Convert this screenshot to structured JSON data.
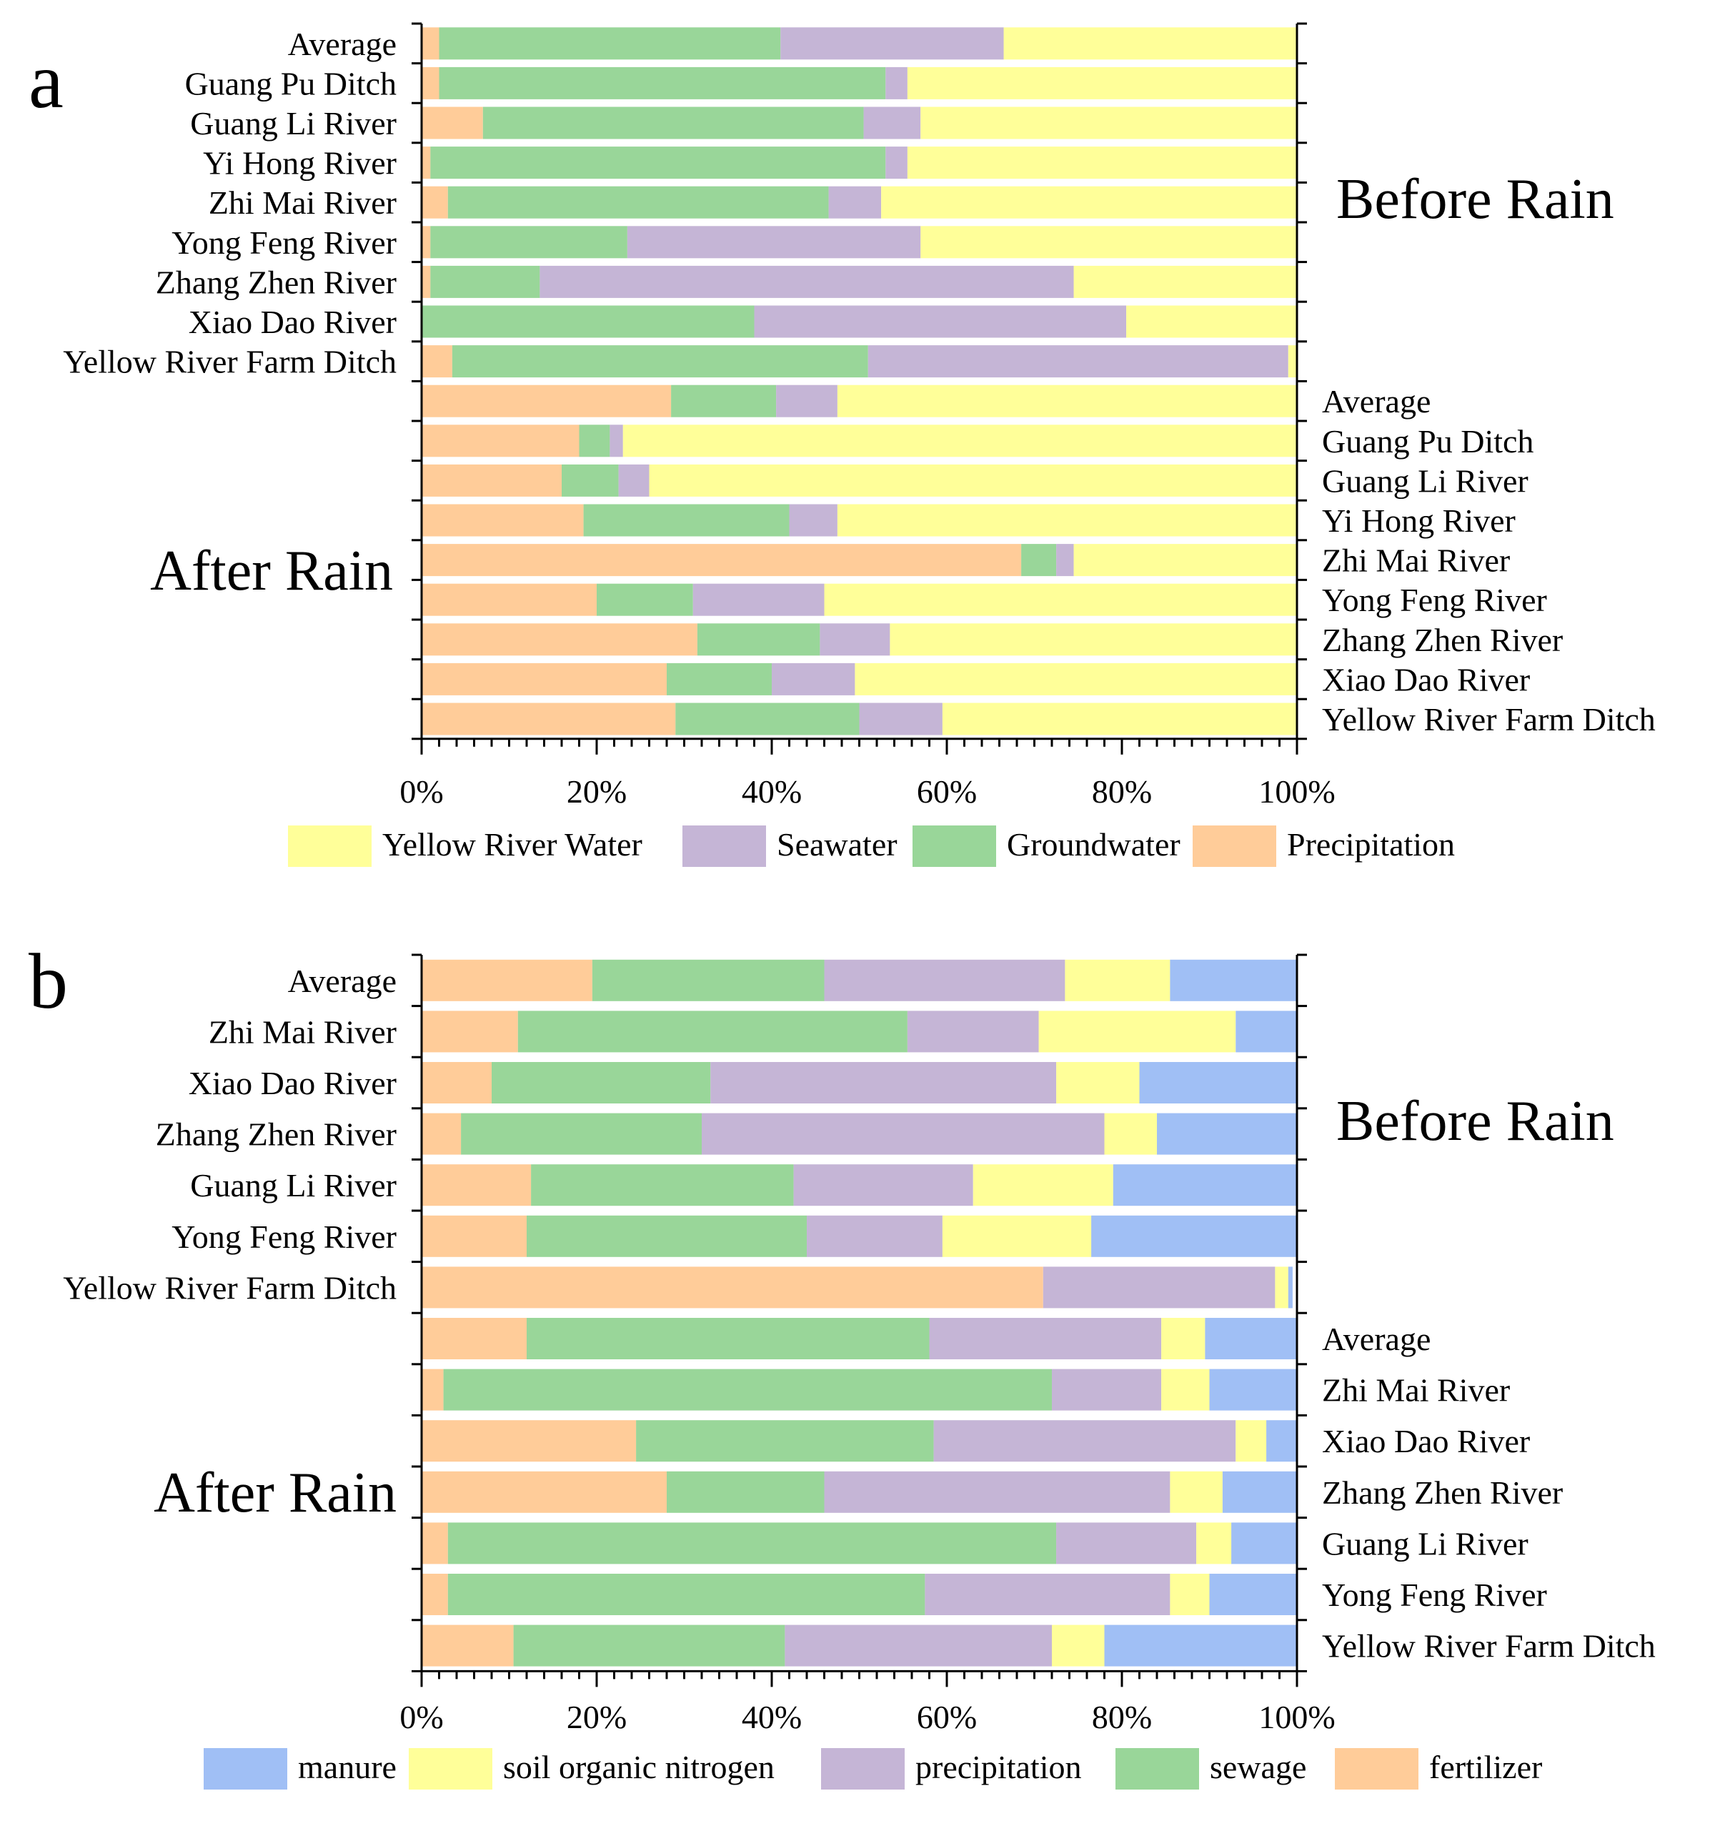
{
  "chart_data": [
    {
      "type": "bar",
      "orientation": "horizontal",
      "stacked": true,
      "normalized": true,
      "panel_label": "a",
      "groups": [
        {
          "title": "Before Rain",
          "categories": [
            "Average",
            "Guang Pu Ditch",
            "Guang Li River",
            "Yi  Hong River",
            "Zhi Mai River",
            "Yong Feng River",
            "Zhang Zhen River",
            "Xiao Dao River",
            "Yellow River Farm Ditch"
          ],
          "series": [
            {
              "name": "Precipitation",
              "color": "#FFCC99",
              "values": [
                2,
                2,
                7,
                1,
                3,
                1,
                1,
                0,
                3.5
              ]
            },
            {
              "name": "Groundwater",
              "color": "#99D699",
              "values": [
                39,
                51,
                43.5,
                52,
                43.5,
                22.5,
                12.5,
                38,
                47.5
              ]
            },
            {
              "name": "Seawater",
              "color": "#C5B5D6",
              "values": [
                25.5,
                2.5,
                6.5,
                2.5,
                6,
                33.5,
                61,
                42.5,
                48
              ]
            },
            {
              "name": "Yellow River Water",
              "color": "#FFFF99",
              "values": [
                33.5,
                44.5,
                43,
                44.5,
                47.5,
                43,
                25.5,
                19.5,
                1
              ]
            }
          ]
        },
        {
          "title": "After Rain",
          "categories": [
            "Average",
            "Guang Pu Ditch",
            "Guang Li River",
            "Yi  Hong River",
            "Zhi Mai River",
            "Yong Feng River",
            "Zhang Zhen River",
            "Xiao Dao River",
            "Yellow River Farm Ditch"
          ],
          "series": [
            {
              "name": "Precipitation",
              "color": "#FFCC99",
              "values": [
                28.5,
                18,
                16,
                18.5,
                68.5,
                20,
                31.5,
                28,
                29
              ]
            },
            {
              "name": "Groundwater",
              "color": "#99D699",
              "values": [
                12,
                3.5,
                6.5,
                23.5,
                4,
                11,
                14,
                12,
                21
              ]
            },
            {
              "name": "Seawater",
              "color": "#C5B5D6",
              "values": [
                7,
                1.5,
                3.5,
                5.5,
                2,
                15,
                8,
                9.5,
                9.5
              ]
            },
            {
              "name": "Yellow River Water",
              "color": "#FFFF99",
              "values": [
                52.5,
                77,
                74,
                52.5,
                25.5,
                54,
                46.5,
                50.5,
                40.5
              ]
            }
          ]
        }
      ],
      "xlim": [
        0,
        100
      ],
      "x_ticks": [
        "0%",
        "20%",
        "40%",
        "60%",
        "80%",
        "100%"
      ],
      "legend": [
        "Yellow River Water",
        "Seawater",
        "Groundwater",
        "Precipitation"
      ],
      "legend_position": "bottom"
    },
    {
      "type": "bar",
      "orientation": "horizontal",
      "stacked": true,
      "normalized": true,
      "panel_label": "b",
      "groups": [
        {
          "title": "Before Rain",
          "categories": [
            "Average",
            "Zhi Mai River",
            "Xiao Dao River",
            "Zhang Zhen River",
            "Guang Li River",
            "Yong Feng River",
            "Yellow River Farm Ditch"
          ],
          "series": [
            {
              "name": "fertilizer",
              "color": "#FFCC99",
              "values": [
                19.5,
                11,
                8,
                4.5,
                12.5,
                12,
                71
              ]
            },
            {
              "name": "sewage",
              "color": "#99D699",
              "values": [
                26.5,
                44.5,
                25,
                27.5,
                30,
                32,
                0
              ]
            },
            {
              "name": "precipitation",
              "color": "#C5B5D6",
              "values": [
                27.5,
                15,
                39.5,
                46,
                20.5,
                15.5,
                26.5
              ]
            },
            {
              "name": "soil organic nitrogen",
              "color": "#FFFF99",
              "values": [
                12,
                22.5,
                9.5,
                6,
                16,
                17,
                1.5
              ]
            },
            {
              "name": "manure",
              "color": "#A0BFF5",
              "values": [
                14.5,
                7,
                18,
                16,
                21,
                23.5,
                0.5
              ]
            }
          ]
        },
        {
          "title": "After Rain",
          "categories": [
            "Average",
            "Zhi Mai River",
            "Xiao Dao River",
            "Zhang Zhen River",
            "Guang Li River",
            "Yong Feng River",
            "Yellow River Farm Ditch"
          ],
          "series": [
            {
              "name": "fertilizer",
              "color": "#FFCC99",
              "values": [
                12,
                2.5,
                24.5,
                28,
                3,
                3,
                10.5
              ]
            },
            {
              "name": "sewage",
              "color": "#99D699",
              "values": [
                46,
                69.5,
                34,
                18,
                69.5,
                54.5,
                31
              ]
            },
            {
              "name": "precipitation",
              "color": "#C5B5D6",
              "values": [
                26.5,
                12.5,
                34.5,
                39.5,
                16,
                28,
                30.5
              ]
            },
            {
              "name": "soil organic nitrogen",
              "color": "#FFFF99",
              "values": [
                5,
                5.5,
                3.5,
                6,
                4,
                4.5,
                6
              ]
            },
            {
              "name": "manure",
              "color": "#A0BFF5",
              "values": [
                10.5,
                10,
                3.5,
                8.5,
                7.5,
                10,
                22
              ]
            }
          ]
        }
      ],
      "xlim": [
        0,
        100
      ],
      "x_ticks": [
        "0%",
        "20%",
        "40%",
        "60%",
        "80%",
        "100%"
      ],
      "legend": [
        "manure",
        "soil organic nitrogen",
        "precipitation",
        "sewage",
        "fertilizer"
      ],
      "legend_position": "bottom"
    }
  ]
}
